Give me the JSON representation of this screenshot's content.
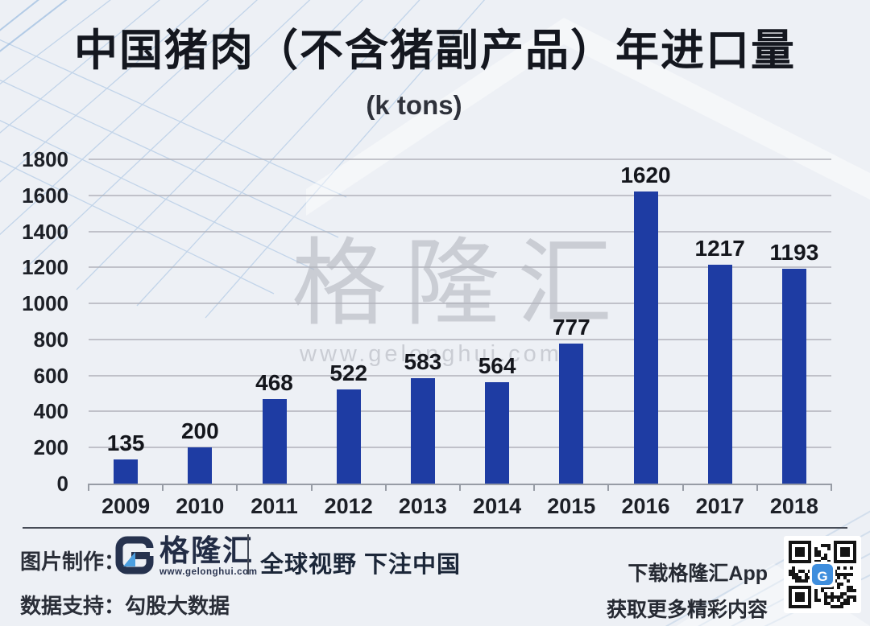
{
  "page": {
    "title": "中国猪肉（不含猪副产品）年进口量",
    "unit_label": "(k tons)"
  },
  "watermark": {
    "brand": "格隆汇",
    "site": "www.gelonghui.com"
  },
  "chart_data": {
    "type": "bar",
    "title": "中国猪肉（不含猪副产品）年进口量",
    "unit": "k tons",
    "categories": [
      "2009",
      "2010",
      "2011",
      "2012",
      "2013",
      "2014",
      "2015",
      "2016",
      "2017",
      "2018"
    ],
    "values": [
      135,
      200,
      468,
      522,
      583,
      564,
      777,
      1620,
      1217,
      1193
    ],
    "ylim": [
      0,
      1800
    ],
    "ytick_step": 200,
    "grid": true,
    "data_labels": true,
    "legend": null,
    "bar_color": "#1e3ca3"
  },
  "footer": {
    "credit_label": "图片制作：",
    "brand": "格隆汇",
    "brand_site": "www.gelonghui.com",
    "slogan": "全球视野 下注中国",
    "data_label": "数据支持：",
    "data_source": "勾股大数据",
    "qr_text_line1": "下载格隆汇App",
    "qr_text_line2": "获取更多精彩内容"
  },
  "colors": {
    "background": "#edf0f5",
    "bar": "#1e3ca3",
    "brand_navy": "#222c45",
    "accent_blue": "#3f8edd",
    "watermark_gray": "#b3b6bf"
  }
}
